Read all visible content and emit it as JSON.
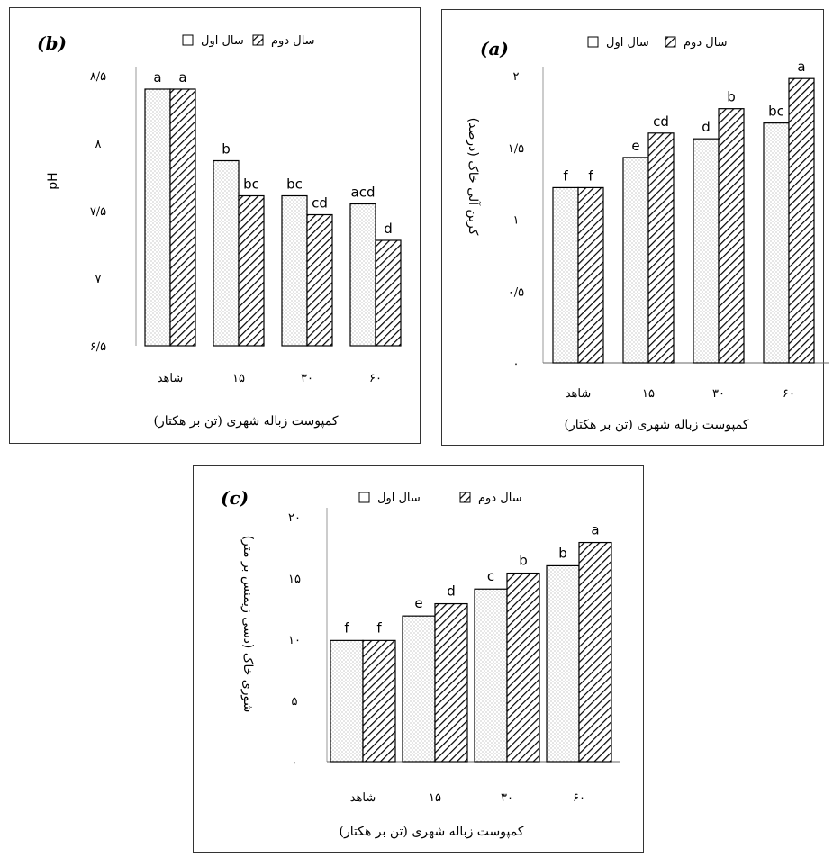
{
  "legend": {
    "first_year": "سال اول",
    "second_year": "سال دوم"
  },
  "chart_data": [
    {
      "id": "b",
      "type": "bar",
      "panel_label": "(b)",
      "xlabel": "کمپوست زباله شهری (تن بر هکتار)",
      "ylabel": "pH",
      "categories": [
        "شاهد",
        "۱۵",
        "۳۰",
        "۶۰"
      ],
      "ylim": [
        6.5,
        8.5
      ],
      "ytick_values": [
        6.5,
        7,
        7.5,
        8,
        8.5
      ],
      "ytick_labels": [
        "۶/۵",
        "۷",
        "۷/۵",
        "۸",
        "۸/۵"
      ],
      "series": [
        {
          "name": "سال اول",
          "values": [
            8.4,
            7.87,
            7.61,
            7.55
          ],
          "sig": [
            "a",
            "b",
            "bc",
            "acd"
          ]
        },
        {
          "name": "سال دوم",
          "values": [
            8.4,
            7.61,
            7.47,
            7.28
          ],
          "sig": [
            "a",
            "bc",
            "cd",
            "d"
          ]
        }
      ]
    },
    {
      "id": "a",
      "type": "bar",
      "panel_label": "(a)",
      "xlabel": "کمپوست زباله شهری (تن بر هکتار)",
      "ylabel": "کربن آلی خاک (درصد)",
      "categories": [
        "شاهد",
        "۱۵",
        "۳۰",
        "۶۰"
      ],
      "ylim": [
        0,
        2
      ],
      "ytick_values": [
        0,
        0.5,
        1,
        1.5,
        2
      ],
      "ytick_labels": [
        "۰",
        "۰/۵",
        "۱",
        "۱/۵",
        "۲"
      ],
      "series": [
        {
          "name": "سال اول",
          "values": [
            1.22,
            1.43,
            1.56,
            1.67
          ],
          "sig": [
            "f",
            "e",
            "d",
            "bc"
          ]
        },
        {
          "name": "سال دوم",
          "values": [
            1.22,
            1.6,
            1.77,
            1.98
          ],
          "sig": [
            "f",
            "cd",
            "b",
            "a"
          ]
        }
      ]
    },
    {
      "id": "c",
      "type": "bar",
      "panel_label": "(c)",
      "xlabel": "کمپوست زباله شهری (تن بر هکتار)",
      "ylabel": "شوری خاک (دسی زیمنس بر متر)",
      "categories": [
        "شاهد",
        "۱۵",
        "۳۰",
        "۶۰"
      ],
      "ylim": [
        0,
        20
      ],
      "ytick_values": [
        0,
        5,
        10,
        15,
        20
      ],
      "ytick_labels": [
        "۰",
        "۵",
        "۱۰",
        "۱۵",
        "۲۰"
      ],
      "series": [
        {
          "name": "سال اول",
          "values": [
            9.9,
            11.9,
            14.1,
            16.0
          ],
          "sig": [
            "f",
            "e",
            "c",
            "b"
          ]
        },
        {
          "name": "سال دوم",
          "values": [
            9.9,
            12.9,
            15.4,
            17.9
          ],
          "sig": [
            "f",
            "d",
            "b",
            "a"
          ]
        }
      ]
    }
  ]
}
